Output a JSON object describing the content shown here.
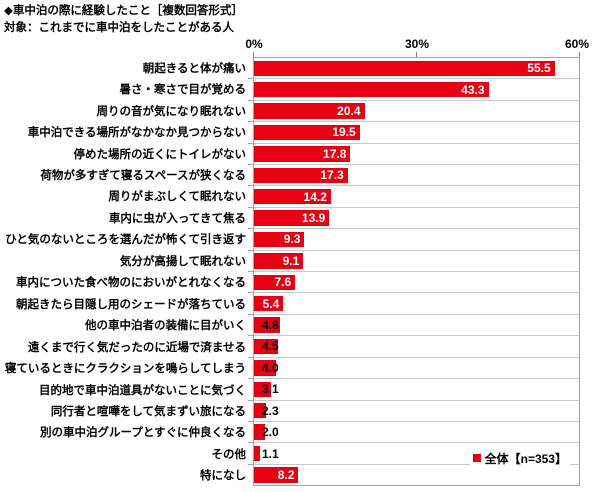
{
  "header": {
    "title": "◆車中泊の際に経験したこと［複数回答形式］",
    "subtitle": "対象：これまでに車中泊をしたことがある人"
  },
  "axis": {
    "tick_labels": [
      "0%",
      "30%",
      "60%"
    ],
    "max_percent": 60
  },
  "legend": {
    "label": "全体【n=353】",
    "marker_color": "#e60012"
  },
  "colors": {
    "bar": "#e60012",
    "value_label_inside": "#ffffff",
    "value_label_outside": "#000000",
    "gridline": "#c9c9c9",
    "plot_border": "#a6a6a6"
  },
  "chart_data": {
    "type": "bar",
    "orientation": "horizontal",
    "title": "◆車中泊の際に経験したこと［複数回答形式］",
    "subtitle": "対象：これまでに車中泊をしたことがある人",
    "series_name": "全体",
    "n": 353,
    "xlim": [
      0,
      60
    ],
    "x_ticks_percent": [
      0,
      30,
      60
    ],
    "grid": "row-separators",
    "legend_position": "bottom-right-inside",
    "categories": [
      "朝起きると体が痛い",
      "暑さ・寒さで目が覚める",
      "周りの音が気になり眠れない",
      "車中泊できる場所がなかなか見つからない",
      "停めた場所の近くにトイレがない",
      "荷物が多すぎて寝るスペースが狭くなる",
      "周りがまぶしくて眠れない",
      "車内に虫が入ってきて焦る",
      "ひと気のないところを選んだが怖くて引き返す",
      "気分が高揚して眠れない",
      "車内についた食べ物のにおいがとれなくなる",
      "朝起きたら目隠し用のシェードが落ちている",
      "他の車中泊者の装備に目がいく",
      "遠くまで行く気だったのに近場で済ませる",
      "寝ているときにクラクションを鳴らしてしまう",
      "目的地で車中泊道具がないことに気づく",
      "同行者と喧嘩をして気まずい旅になる",
      "別の車中泊グループとすぐに仲良くなる",
      "その他",
      "特になし"
    ],
    "values": [
      55.5,
      43.3,
      20.4,
      19.5,
      17.8,
      17.3,
      14.2,
      13.9,
      9.3,
      9.1,
      7.6,
      5.4,
      4.8,
      4.5,
      4.0,
      3.1,
      2.3,
      2.0,
      1.1,
      8.2
    ]
  }
}
